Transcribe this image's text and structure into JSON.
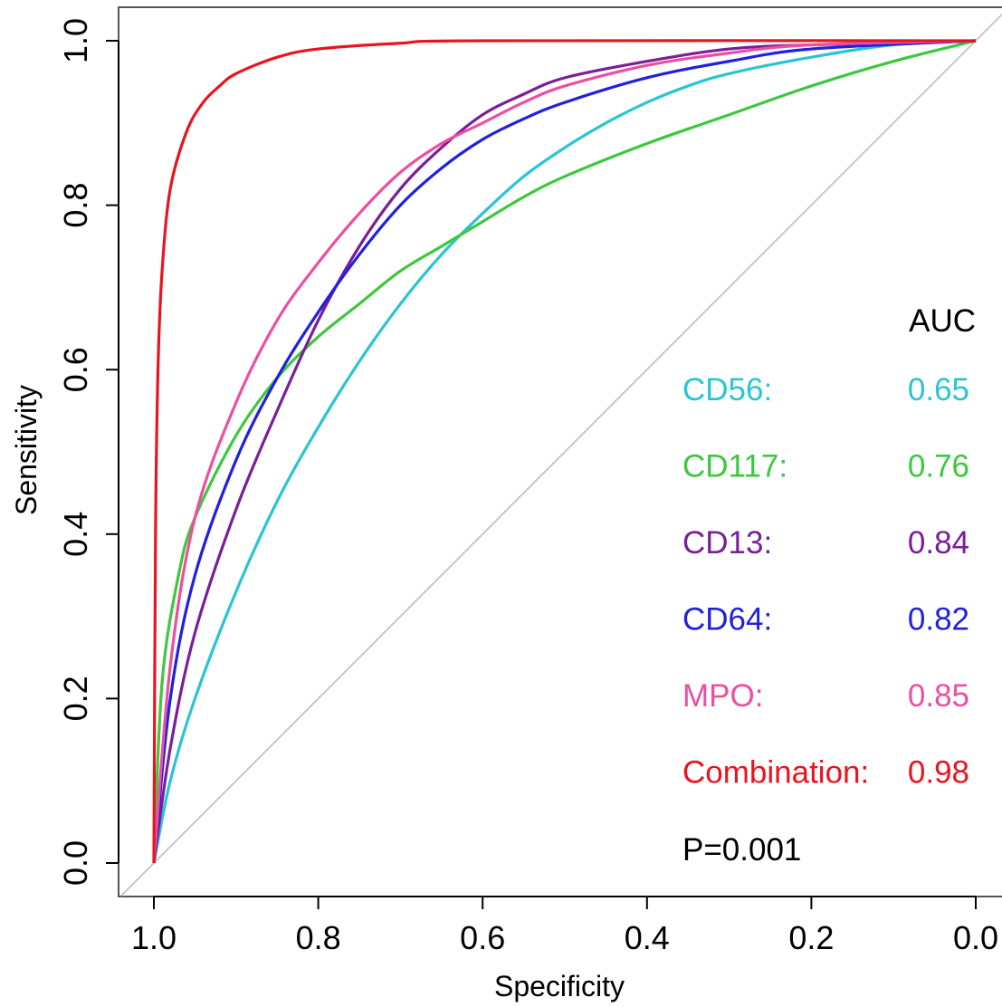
{
  "chart_data": {
    "type": "line",
    "title": "",
    "xlabel": "Specificity",
    "ylabel": "Sensitivity",
    "xlim": [
      1.0,
      0.0
    ],
    "ylim": [
      0.0,
      1.0
    ],
    "x_reversed": true,
    "x_ticks": [
      "1.0",
      "0.8",
      "0.6",
      "0.4",
      "0.2",
      "0.0"
    ],
    "y_ticks": [
      "0.0",
      "0.2",
      "0.4",
      "0.6",
      "0.8",
      "1.0"
    ],
    "grid": false,
    "reference_line": {
      "from": [
        1.0,
        0.0
      ],
      "to": [
        0.0,
        1.0
      ],
      "color": "#c8c8c8"
    },
    "legend_header": "AUC",
    "annotation": "P=0.001",
    "series": [
      {
        "name": "CD56:",
        "auc": "0.65",
        "color": "#29c5d3",
        "points": [
          [
            1.0,
            0.0
          ],
          [
            0.98,
            0.1
          ],
          [
            0.95,
            0.2
          ],
          [
            0.9,
            0.33
          ],
          [
            0.85,
            0.44
          ],
          [
            0.8,
            0.53
          ],
          [
            0.75,
            0.61
          ],
          [
            0.7,
            0.68
          ],
          [
            0.65,
            0.74
          ],
          [
            0.6,
            0.79
          ],
          [
            0.55,
            0.835
          ],
          [
            0.5,
            0.87
          ],
          [
            0.45,
            0.9
          ],
          [
            0.4,
            0.925
          ],
          [
            0.35,
            0.945
          ],
          [
            0.3,
            0.96
          ],
          [
            0.2,
            0.98
          ],
          [
            0.1,
            0.995
          ],
          [
            0.0,
            1.0
          ]
        ]
      },
      {
        "name": "CD117:",
        "auc": "0.76",
        "color": "#3dc83d",
        "points": [
          [
            1.0,
            0.0
          ],
          [
            0.99,
            0.22
          ],
          [
            0.97,
            0.35
          ],
          [
            0.95,
            0.42
          ],
          [
            0.9,
            0.52
          ],
          [
            0.85,
            0.59
          ],
          [
            0.8,
            0.64
          ],
          [
            0.75,
            0.68
          ],
          [
            0.7,
            0.72
          ],
          [
            0.65,
            0.75
          ],
          [
            0.6,
            0.78
          ],
          [
            0.55,
            0.81
          ],
          [
            0.5,
            0.835
          ],
          [
            0.4,
            0.875
          ],
          [
            0.3,
            0.91
          ],
          [
            0.2,
            0.945
          ],
          [
            0.1,
            0.975
          ],
          [
            0.0,
            1.0
          ]
        ]
      },
      {
        "name": "CD13:",
        "auc": "0.84",
        "color": "#7a1e9a",
        "points": [
          [
            1.0,
            0.0
          ],
          [
            0.98,
            0.14
          ],
          [
            0.95,
            0.28
          ],
          [
            0.9,
            0.43
          ],
          [
            0.85,
            0.55
          ],
          [
            0.8,
            0.66
          ],
          [
            0.75,
            0.75
          ],
          [
            0.7,
            0.82
          ],
          [
            0.65,
            0.87
          ],
          [
            0.6,
            0.91
          ],
          [
            0.55,
            0.935
          ],
          [
            0.5,
            0.955
          ],
          [
            0.4,
            0.975
          ],
          [
            0.3,
            0.99
          ],
          [
            0.2,
            0.995
          ],
          [
            0.0,
            1.0
          ]
        ]
      },
      {
        "name": "CD64:",
        "auc": "0.82",
        "color": "#2020e0",
        "points": [
          [
            1.0,
            0.0
          ],
          [
            0.98,
            0.2
          ],
          [
            0.95,
            0.35
          ],
          [
            0.9,
            0.49
          ],
          [
            0.85,
            0.59
          ],
          [
            0.8,
            0.67
          ],
          [
            0.75,
            0.74
          ],
          [
            0.7,
            0.8
          ],
          [
            0.65,
            0.845
          ],
          [
            0.6,
            0.88
          ],
          [
            0.55,
            0.905
          ],
          [
            0.5,
            0.925
          ],
          [
            0.4,
            0.955
          ],
          [
            0.3,
            0.975
          ],
          [
            0.2,
            0.99
          ],
          [
            0.0,
            1.0
          ]
        ]
      },
      {
        "name": "MPO:",
        "auc": "0.85",
        "color": "#ec4fa0",
        "points": [
          [
            1.0,
            0.0
          ],
          [
            0.98,
            0.24
          ],
          [
            0.95,
            0.42
          ],
          [
            0.9,
            0.56
          ],
          [
            0.85,
            0.66
          ],
          [
            0.8,
            0.73
          ],
          [
            0.75,
            0.79
          ],
          [
            0.7,
            0.84
          ],
          [
            0.65,
            0.875
          ],
          [
            0.6,
            0.9
          ],
          [
            0.55,
            0.925
          ],
          [
            0.5,
            0.945
          ],
          [
            0.4,
            0.97
          ],
          [
            0.3,
            0.985
          ],
          [
            0.2,
            0.995
          ],
          [
            0.0,
            1.0
          ]
        ]
      },
      {
        "name": "Combination:",
        "auc": "0.98",
        "color": "#e8141e",
        "points": [
          [
            1.0,
            0.0
          ],
          [
            0.998,
            0.4
          ],
          [
            0.995,
            0.6
          ],
          [
            0.99,
            0.72
          ],
          [
            0.98,
            0.82
          ],
          [
            0.96,
            0.89
          ],
          [
            0.94,
            0.925
          ],
          [
            0.92,
            0.945
          ],
          [
            0.9,
            0.96
          ],
          [
            0.85,
            0.98
          ],
          [
            0.8,
            0.99
          ],
          [
            0.7,
            0.997
          ],
          [
            0.6,
            1.0
          ],
          [
            0.0,
            1.0
          ]
        ]
      }
    ]
  }
}
